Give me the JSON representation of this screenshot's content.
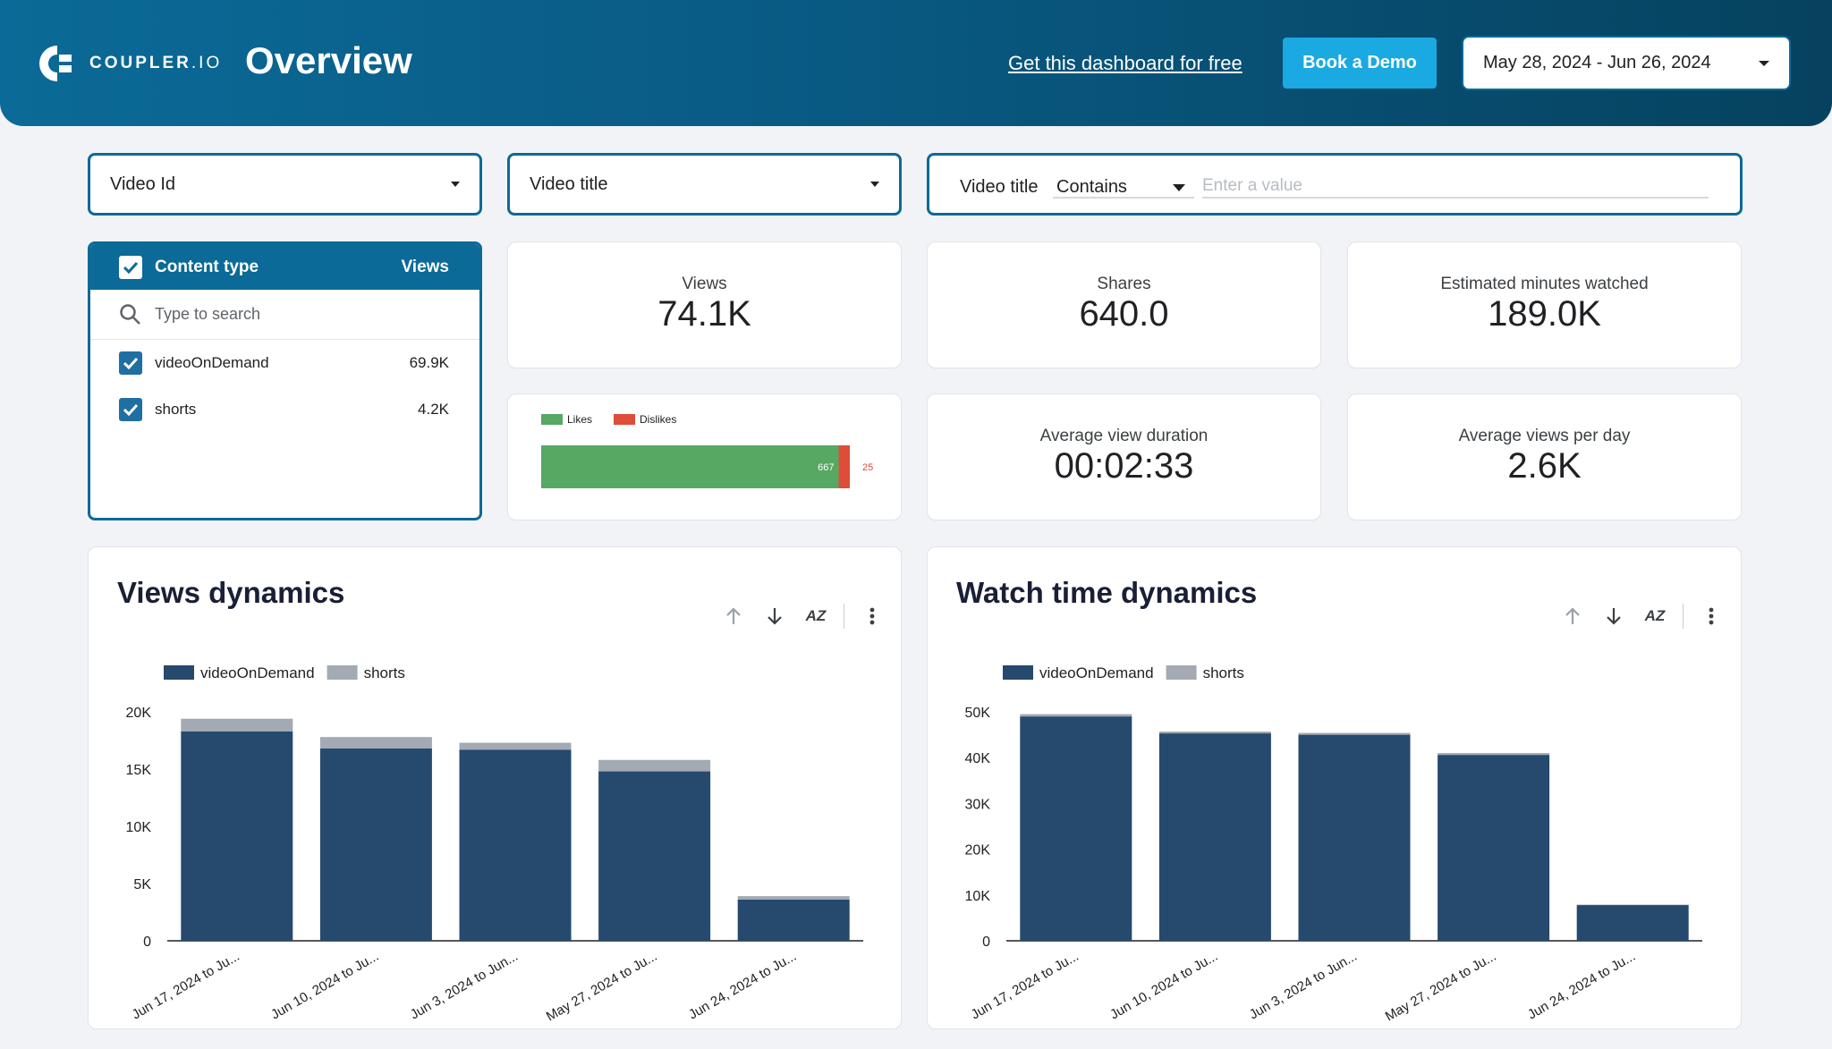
{
  "header": {
    "logo_text": "COUPLER",
    "logo_suffix": ".IO",
    "title": "Overview",
    "free_link": "Get this dashboard for free",
    "demo_button": "Book a Demo",
    "date_range": "May 28, 2024 - Jun 26, 2024"
  },
  "filters": {
    "video_id": "Video Id",
    "video_title": "Video title",
    "search_label": "Video title",
    "search_operator": "Contains",
    "search_placeholder": "Enter a value"
  },
  "content_type": {
    "header_label": "Content type",
    "header_value": "Views",
    "search_placeholder": "Type to search",
    "items": [
      {
        "label": "videoOnDemand",
        "value": "69.9K"
      },
      {
        "label": "shorts",
        "value": "4.2K"
      }
    ]
  },
  "kpis": {
    "views": {
      "label": "Views",
      "value": "74.1K"
    },
    "shares": {
      "label": "Shares",
      "value": "640.0"
    },
    "minutes": {
      "label": "Estimated minutes watched",
      "value": "189.0K"
    },
    "avg_duration": {
      "label": "Average view duration",
      "value": "00:02:33"
    },
    "avg_per_day": {
      "label": "Average views per day",
      "value": "2.6K"
    }
  },
  "likes_chart": {
    "legend": [
      "Likes",
      "Dislikes"
    ],
    "likes": 667,
    "dislikes": 25,
    "likes_label": "667",
    "dislikes_label": "25",
    "colors": {
      "likes": "#57a862",
      "dislikes": "#de4d3a"
    }
  },
  "chart_data": [
    {
      "type": "bar",
      "stacked": true,
      "title": "Views dynamics",
      "categories": [
        "Jun 17, 2024 to Ju...",
        "Jun 10, 2024 to Ju...",
        "Jun 3, 2024 to Jun...",
        "May 27, 2024 to Ju...",
        "Jun 24, 2024 to Ju..."
      ],
      "series": [
        {
          "name": "videoOnDemand",
          "color": "#254a6e",
          "values": [
            18300,
            16800,
            16700,
            14800,
            3600
          ]
        },
        {
          "name": "shorts",
          "color": "#a3aab3",
          "values": [
            1100,
            1000,
            600,
            1000,
            300
          ]
        }
      ],
      "yticks": [
        "0",
        "5K",
        "10K",
        "15K",
        "20K"
      ],
      "ytick_values": [
        0,
        5000,
        10000,
        15000,
        20000
      ],
      "ylim": [
        0,
        20000
      ],
      "legend_position": "top-left"
    },
    {
      "type": "bar",
      "stacked": true,
      "title": "Watch time dynamics",
      "categories": [
        "Jun 17, 2024 to Ju...",
        "Jun 10, 2024 to Ju...",
        "Jun 3, 2024 to Jun...",
        "May 27, 2024 to Ju...",
        "Jun 24, 2024 to Ju..."
      ],
      "series": [
        {
          "name": "videoOnDemand",
          "color": "#254a6e",
          "values": [
            49000,
            45300,
            45000,
            40600,
            7800
          ]
        },
        {
          "name": "shorts",
          "color": "#a3aab3",
          "values": [
            500,
            400,
            400,
            400,
            100
          ]
        }
      ],
      "yticks": [
        "0",
        "10K",
        "20K",
        "30K",
        "40K",
        "50K"
      ],
      "ytick_values": [
        0,
        10000,
        20000,
        30000,
        40000,
        50000
      ],
      "ylim": [
        0,
        50000
      ],
      "legend_position": "top-left"
    }
  ]
}
